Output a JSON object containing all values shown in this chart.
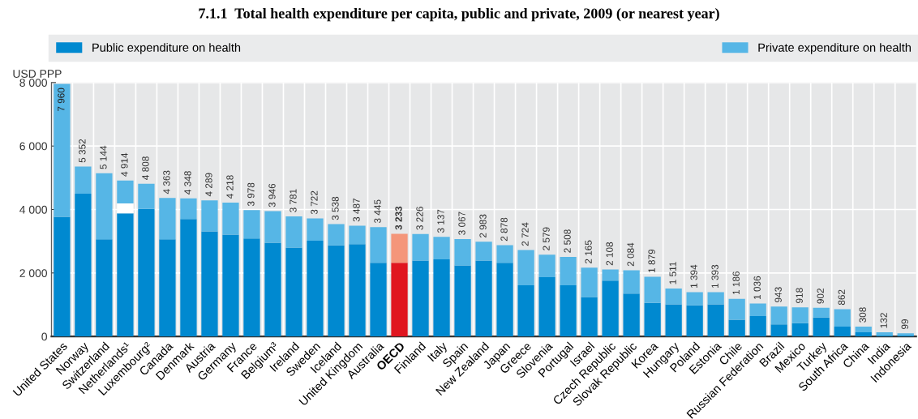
{
  "chart_data": {
    "type": "bar",
    "stacked": true,
    "title": "7.1.1  Total health expenditure per capita, public and private, 2009 (or nearest year)",
    "ylabel": "USD PPP",
    "categories": [
      "United States",
      "Norway",
      "Switzerland",
      "Netherlands¹",
      "Luxembourg²",
      "Canada",
      "Denmark",
      "Austria",
      "Germany",
      "France",
      "Belgium³",
      "Ireland",
      "Sweden",
      "Iceland",
      "United Kingdom",
      "Australia",
      "OECD",
      "Finland",
      "Italy",
      "Spain",
      "New Zealand",
      "Japan",
      "Greece",
      "Slovenia",
      "Portugal",
      "Israel",
      "Czech Republic",
      "Slovak Republic",
      "Korea",
      "Hungary",
      "Poland",
      "Estonia",
      "Chile",
      "Russian Federation",
      "Brazil",
      "Mexico",
      "Turkey",
      "South Africa",
      "China",
      "India",
      "Indonesia"
    ],
    "series": [
      {
        "name": "Public expenditure on health",
        "color": "#0089d0",
        "colors": [
          "#0089d0",
          "#0089d0",
          "#0089d0",
          "#0089d0",
          "#0089d0",
          "#0089d0",
          "#0089d0",
          "#0089d0",
          "#0089d0",
          "#0089d0",
          "#0089d0",
          "#0089d0",
          "#0089d0",
          "#0089d0",
          "#0089d0",
          "#0089d0",
          "#e0161f",
          "#0089d0",
          "#0089d0",
          "#0089d0",
          "#0089d0",
          "#0089d0",
          "#0089d0",
          "#0089d0",
          "#0089d0",
          "#0089d0",
          "#0089d0",
          "#0089d0",
          "#0089d0",
          "#0089d0",
          "#0089d0",
          "#0089d0",
          "#0089d0",
          "#0089d0",
          "#0089d0",
          "#0089d0",
          "#0089d0",
          "#0089d0",
          "#0089d0",
          "#0089d0",
          "#0089d0"
        ],
        "values": [
          3770,
          4500,
          3060,
          3880,
          4020,
          3060,
          3700,
          3310,
          3210,
          3090,
          2950,
          2800,
          3020,
          2870,
          2910,
          2320,
          2320,
          2390,
          2430,
          2240,
          2390,
          2320,
          1610,
          1870,
          1610,
          1240,
          1760,
          1350,
          1060,
          1010,
          980,
          1010,
          530,
          640,
          380,
          420,
          600,
          310,
          130,
          40,
          35
        ]
      },
      {
        "color": "#ffffff",
        "values": [
          null,
          null,
          null,
          310,
          null,
          null,
          null,
          null,
          null,
          null,
          null,
          null,
          null,
          null,
          null,
          null,
          null,
          null,
          null,
          null,
          null,
          null,
          null,
          null,
          null,
          null,
          null,
          null,
          null,
          null,
          null,
          null,
          null,
          null,
          null,
          null,
          null,
          null,
          null,
          null,
          null
        ]
      },
      {
        "name": "Private expenditure on health",
        "color": "#56b6e6",
        "colors": [
          "#56b6e6",
          "#56b6e6",
          "#56b6e6",
          "#56b6e6",
          "#56b6e6",
          "#56b6e6",
          "#56b6e6",
          "#56b6e6",
          "#56b6e6",
          "#56b6e6",
          "#56b6e6",
          "#56b6e6",
          "#56b6e6",
          "#56b6e6",
          "#56b6e6",
          "#56b6e6",
          "#f4967a",
          "#56b6e6",
          "#56b6e6",
          "#56b6e6",
          "#56b6e6",
          "#56b6e6",
          "#56b6e6",
          "#56b6e6",
          "#56b6e6",
          "#56b6e6",
          "#56b6e6",
          "#56b6e6",
          "#56b6e6",
          "#56b6e6",
          "#56b6e6",
          "#56b6e6",
          "#56b6e6",
          "#56b6e6",
          "#56b6e6",
          "#56b6e6",
          "#56b6e6",
          "#56b6e6",
          "#56b6e6",
          "#56b6e6",
          "#56b6e6"
        ],
        "values": [
          4190,
          852,
          2084,
          724,
          788,
          1303,
          648,
          979,
          1008,
          888,
          996,
          981,
          702,
          668,
          577,
          1125,
          913,
          836,
          707,
          827,
          593,
          558,
          1114,
          709,
          898,
          925,
          348,
          734,
          819,
          501,
          414,
          383,
          656,
          396,
          563,
          498,
          302,
          552,
          178,
          92,
          64
        ]
      }
    ],
    "totals": [
      "7 960",
      "5 352",
      "5 144",
      "4 914",
      "4 808",
      "4 363",
      "4 348",
      "4 289",
      "4 218",
      "3 978",
      "3 946",
      "3 781",
      "3 722",
      "3 538",
      "3 487",
      "3 445",
      "3 233",
      "3 226",
      "3 137",
      "3 067",
      "2 983",
      "2 878",
      "2 724",
      "2 579",
      "2 508",
      "2 165",
      "2 108",
      "2 084",
      "1 879",
      "1 511",
      "1 394",
      "1 393",
      "1 186",
      "1 036",
      "943",
      "918",
      "902",
      "862",
      "308",
      "132",
      "99"
    ],
    "ylim": [
      0,
      8000
    ],
    "yticks": [
      {
        "value": 0,
        "label": "0"
      },
      {
        "value": 2000,
        "label": "2 000"
      },
      {
        "value": 4000,
        "label": "4 000"
      },
      {
        "value": 6000,
        "label": "6 000"
      },
      {
        "value": 8000,
        "label": "8 000"
      }
    ],
    "grid": true,
    "legend": "top"
  }
}
